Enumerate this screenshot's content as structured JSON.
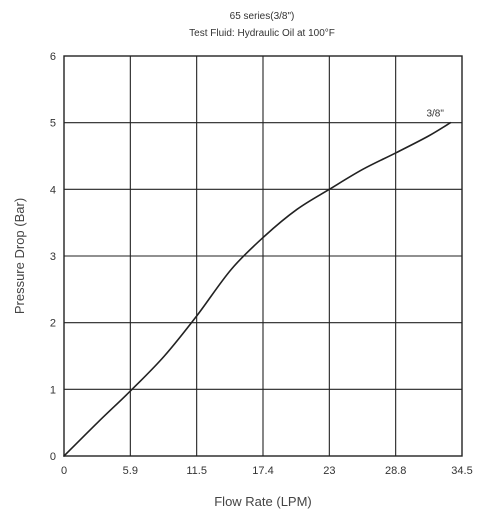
{
  "chart_data": {
    "type": "line",
    "title": "65 series(3/8\")",
    "subtitle": "Test Fluid: Hydraulic Oil at 100°F",
    "xlabel": "Flow Rate (LPM)",
    "ylabel": "Pressure Drop (Bar)",
    "xlim": [
      0,
      34.5
    ],
    "ylim": [
      0,
      6
    ],
    "x_ticks": [
      "0",
      "5.9",
      "11.5",
      "17.4",
      "23",
      "28.8",
      "34.5"
    ],
    "y_ticks": [
      "0",
      "1",
      "2",
      "3",
      "4",
      "5",
      "6"
    ],
    "grid": true,
    "series": [
      {
        "name": "3/8\"",
        "x": [
          0,
          2.9,
          5.9,
          8.7,
          11.5,
          14.5,
          17.4,
          20.2,
          23,
          25.9,
          28.8,
          31.6,
          33.5
        ],
        "y": [
          0,
          0.5,
          1.0,
          1.5,
          2.1,
          2.8,
          3.3,
          3.7,
          4.0,
          4.3,
          4.55,
          4.8,
          5.0
        ]
      }
    ]
  }
}
